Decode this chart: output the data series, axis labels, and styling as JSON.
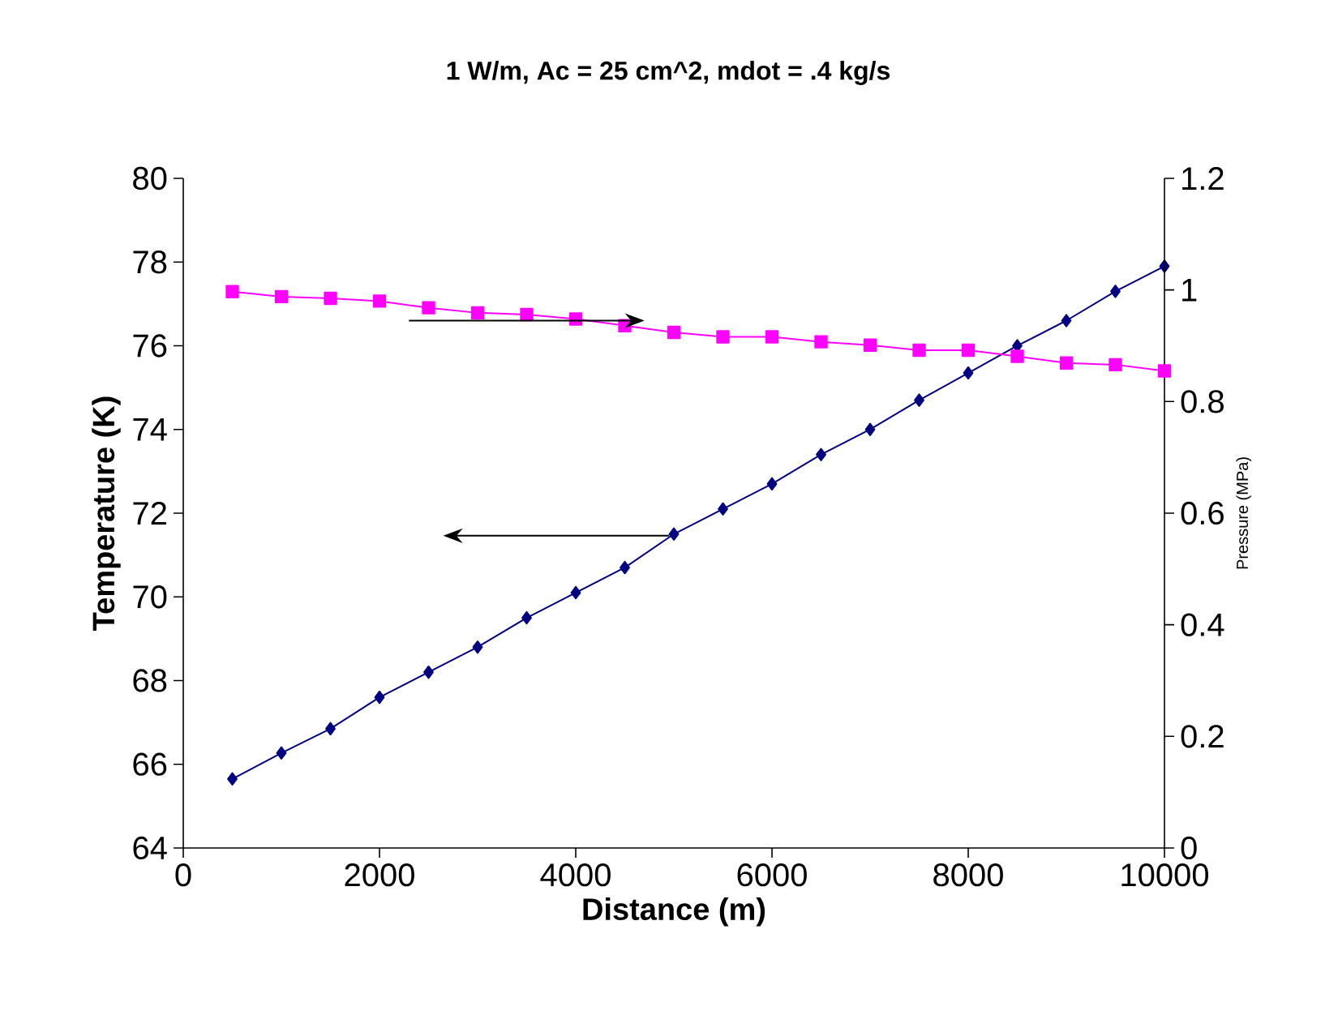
{
  "chart_data": {
    "type": "line",
    "title": "1 W/m, Ac = 25 cm^2, mdot = .4 kg/s",
    "xlabel": "Distance (m)",
    "ylabel": "Temperature (K)",
    "y2label": "Pressure (MPa)",
    "x": [
      500,
      1000,
      1500,
      2000,
      2500,
      3000,
      3500,
      4000,
      4500,
      5000,
      5500,
      6000,
      6500,
      7000,
      7500,
      8000,
      8500,
      9000,
      9500,
      10000
    ],
    "series": [
      {
        "color": "#000080",
        "marker": "diamond",
        "values": [
          65.65,
          66.27,
          66.85,
          67.6,
          68.2,
          68.8,
          69.5,
          70.1,
          70.7,
          71.5,
          72.1,
          72.7,
          73.4,
          74.0,
          74.7,
          75.35,
          76.0,
          76.6,
          77.3,
          77.9
        ]
      },
      {
        "color": "#ff00ff",
        "marker": "square",
        "axis": "y2",
        "values": [
          0.997,
          0.988,
          0.985,
          0.98,
          0.968,
          0.959,
          0.956,
          0.948,
          0.936,
          0.924,
          0.916,
          0.916,
          0.907,
          0.901,
          0.892,
          0.892,
          0.881,
          0.869,
          0.866,
          0.855
        ]
      }
    ],
    "xlim": [
      0,
      10000
    ],
    "xticks": [
      0,
      2000,
      4000,
      6000,
      8000,
      10000
    ],
    "ylim": [
      64,
      80
    ],
    "yticks": [
      64,
      66,
      68,
      70,
      72,
      74,
      76,
      78,
      80
    ],
    "y2lim": [
      0,
      1.2
    ],
    "y2ticks": [
      0,
      0.2,
      0.4,
      0.6,
      0.8,
      1,
      1.2
    ],
    "line_style": "solid"
  }
}
